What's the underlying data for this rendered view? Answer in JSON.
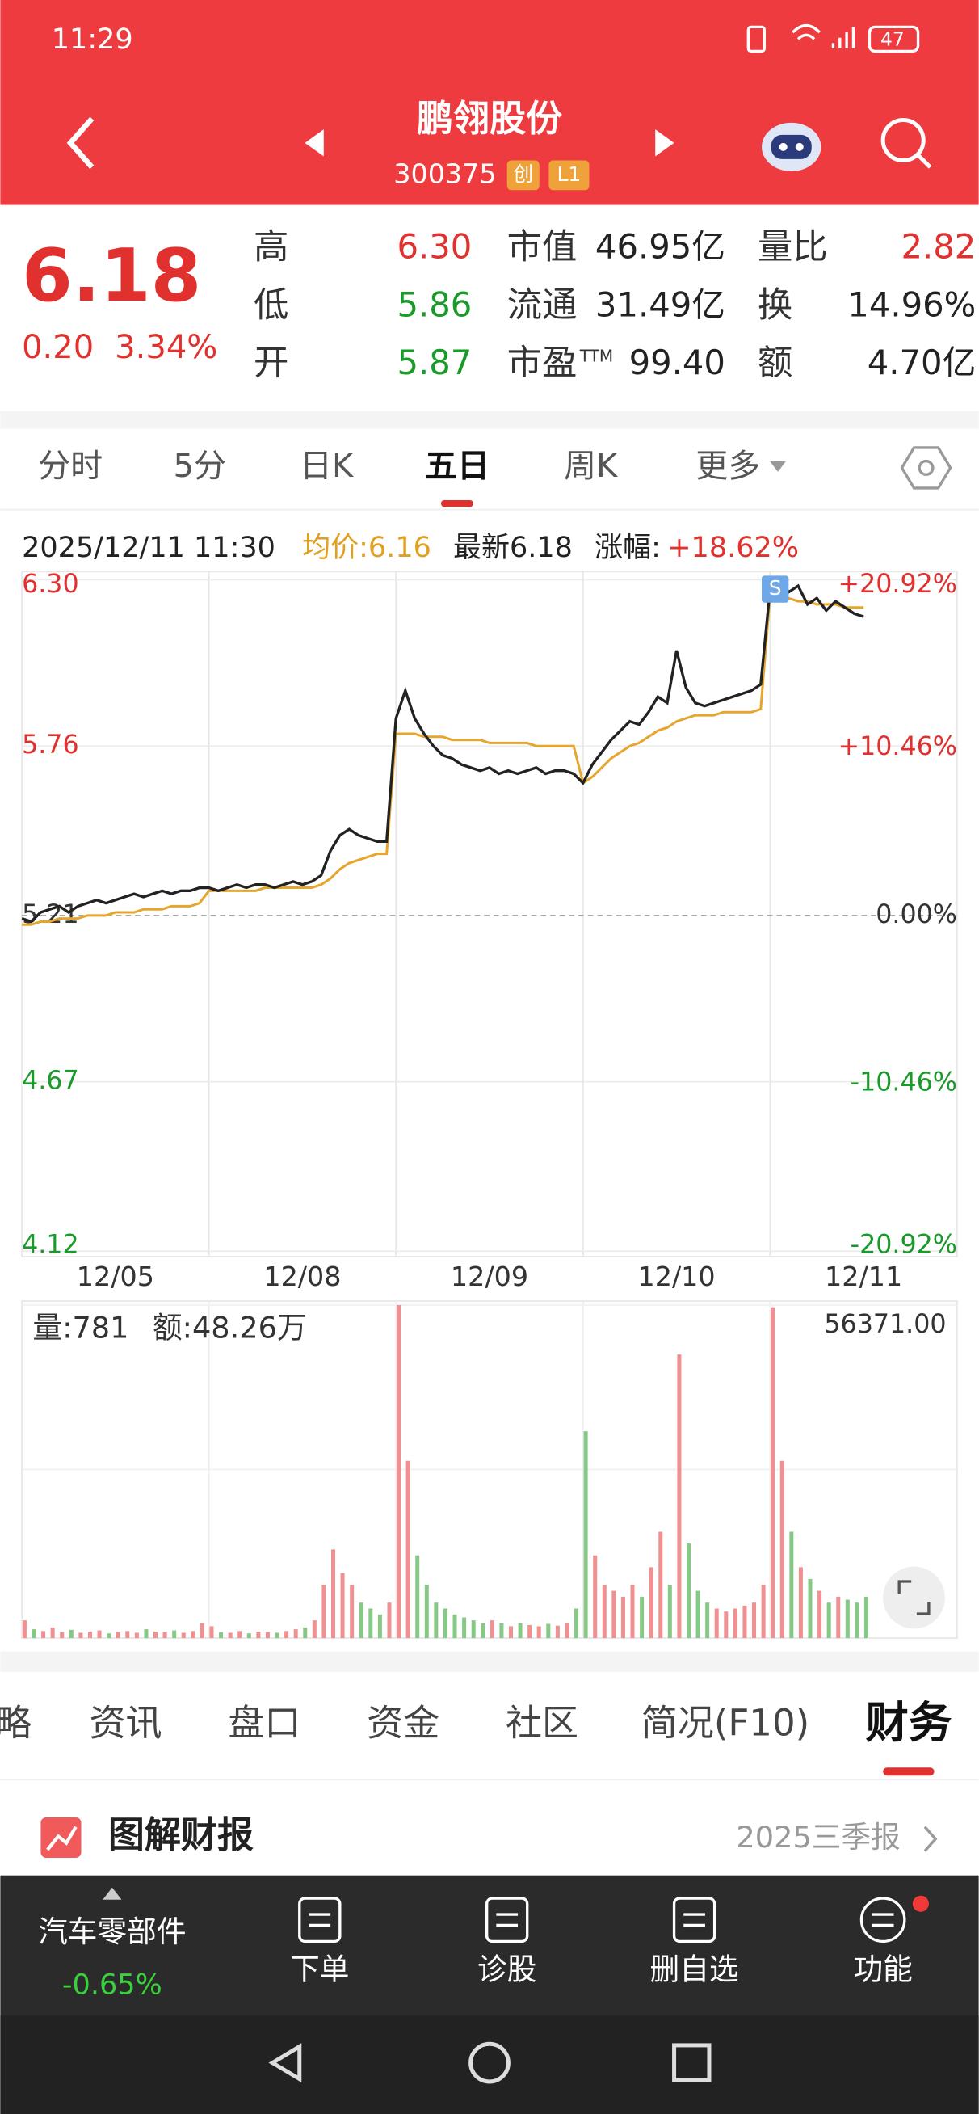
{
  "status_bar": {
    "time": "11:29",
    "battery": "47"
  },
  "header": {
    "title": "鹏翎股份",
    "code": "300375",
    "tags": [
      "创",
      "L1"
    ]
  },
  "quote": {
    "price": "6.18",
    "change": "0.20",
    "change_pct": "3.34%",
    "stats": [
      {
        "label": "高",
        "value": "6.30"
      },
      {
        "label": "低",
        "value": "5.86"
      },
      {
        "label": "开",
        "value": "5.87"
      },
      {
        "label": "市值",
        "value": "46.95亿"
      },
      {
        "label": "流通",
        "value": "31.49亿"
      },
      {
        "label": "市盈",
        "sup": "TTM",
        "value": "99.40"
      },
      {
        "label": "量比",
        "value": "2.82"
      },
      {
        "label": "换",
        "value": "14.96%"
      },
      {
        "label": "额",
        "value": "4.70亿"
      }
    ]
  },
  "period_tabs": [
    "分时",
    "5分",
    "日K",
    "五日",
    "周K",
    "更多"
  ],
  "chart_info": {
    "datetime": "2025/12/11 11:30",
    "avg": "均价:6.16",
    "latest": "最新6.18",
    "change_label": "涨幅:",
    "change_value": "+18.62%"
  },
  "volume_info": {
    "volume": "量:781",
    "amount": "额:48.26万"
  },
  "chart_data": [
    {
      "type": "line",
      "annotation": "S",
      "x": [
        0,
        0.05,
        0.1,
        0.15,
        0.2,
        0.25,
        0.3,
        0.35,
        0.4,
        0.45,
        0.5,
        0.55,
        0.6,
        0.65,
        0.7,
        0.75,
        0.8,
        0.85,
        0.9,
        0.95,
        1,
        1.05,
        1.1,
        1.15,
        1.2,
        1.25,
        1.3,
        1.35,
        1.4,
        1.45,
        1.5,
        1.55,
        1.6,
        1.65,
        1.7,
        1.75,
        1.8,
        1.85,
        1.9,
        1.95,
        2,
        2.05,
        2.1,
        2.15,
        2.2,
        2.25,
        2.3,
        2.35,
        2.4,
        2.45,
        2.5,
        2.55,
        2.6,
        2.65,
        2.7,
        2.75,
        2.8,
        2.85,
        2.9,
        2.95,
        3,
        3.05,
        3.1,
        3.15,
        3.2,
        3.25,
        3.3,
        3.35,
        3.4,
        3.45,
        3.5,
        3.55,
        3.6,
        3.65,
        3.7,
        3.75,
        3.8,
        3.85,
        3.9,
        3.95,
        4,
        4.05,
        4.1,
        4.15,
        4.2,
        4.25,
        4.3,
        4.35,
        4.4,
        4.45,
        4.5
      ],
      "xlim": [
        0,
        5
      ],
      "xticks": [
        {
          "value": 0.5,
          "label": "12/05"
        },
        {
          "value": 1.5,
          "label": "12/08"
        },
        {
          "value": 2.5,
          "label": "12/09"
        },
        {
          "value": 3.5,
          "label": "12/10"
        },
        {
          "value": 4.5,
          "label": "12/11"
        }
      ],
      "ylim": [
        4.12,
        6.3
      ],
      "yticks": [
        4.12,
        4.67,
        5.21,
        5.76,
        {
          "value": 6.3,
          "label": "6.30"
        }
      ],
      "y2lim": [
        -20.92,
        20.92
      ],
      "y2ticks": [
        {
          "value": -20.92,
          "label": "-20.92%"
        },
        {
          "value": -10.46,
          "label": "-10.46%"
        },
        {
          "value": 0,
          "label": "0.00%"
        },
        {
          "value": 10.46,
          "label": "+10.46%"
        },
        {
          "value": 20.92,
          "label": "+20.92%"
        }
      ],
      "grid": true,
      "series": [
        {
          "color": "#222222",
          "values": [
            5.2,
            5.19,
            5.22,
            5.23,
            5.24,
            5.22,
            5.24,
            5.25,
            5.26,
            5.25,
            5.26,
            5.27,
            5.28,
            5.27,
            5.28,
            5.29,
            5.28,
            5.29,
            5.29,
            5.3,
            5.3,
            5.29,
            5.3,
            5.31,
            5.3,
            5.31,
            5.31,
            5.3,
            5.31,
            5.32,
            5.31,
            5.32,
            5.34,
            5.42,
            5.47,
            5.49,
            5.47,
            5.46,
            5.45,
            5.45,
            5.85,
            5.94,
            5.85,
            5.8,
            5.76,
            5.73,
            5.72,
            5.7,
            5.69,
            5.68,
            5.69,
            5.67,
            5.68,
            5.67,
            5.68,
            5.69,
            5.67,
            5.68,
            5.68,
            5.67,
            5.64,
            5.7,
            5.74,
            5.78,
            5.81,
            5.84,
            5.83,
            5.87,
            5.92,
            5.9,
            6.07,
            5.95,
            5.9,
            5.89,
            5.9,
            5.91,
            5.92,
            5.93,
            5.94,
            5.96,
            6.27,
            6.3,
            6.26,
            6.28,
            6.22,
            6.24,
            6.2,
            6.23,
            6.21,
            6.19,
            6.18
          ]
        },
        {
          "color": "#e6a52c",
          "values": [
            5.18,
            5.18,
            5.19,
            5.19,
            5.2,
            5.2,
            5.2,
            5.21,
            5.21,
            5.21,
            5.22,
            5.22,
            5.22,
            5.23,
            5.23,
            5.23,
            5.24,
            5.24,
            5.24,
            5.25,
            5.29,
            5.29,
            5.29,
            5.29,
            5.29,
            5.29,
            5.3,
            5.3,
            5.3,
            5.3,
            5.3,
            5.3,
            5.31,
            5.33,
            5.36,
            5.38,
            5.39,
            5.4,
            5.41,
            5.41,
            5.8,
            5.8,
            5.8,
            5.79,
            5.79,
            5.79,
            5.78,
            5.78,
            5.78,
            5.78,
            5.77,
            5.77,
            5.77,
            5.77,
            5.77,
            5.76,
            5.76,
            5.76,
            5.76,
            5.76,
            5.64,
            5.66,
            5.69,
            5.72,
            5.74,
            5.76,
            5.77,
            5.79,
            5.81,
            5.82,
            5.84,
            5.85,
            5.86,
            5.86,
            5.86,
            5.87,
            5.87,
            5.87,
            5.87,
            5.88,
            6.25,
            6.24,
            6.24,
            6.23,
            6.23,
            6.22,
            6.22,
            6.22,
            6.21,
            6.21,
            6.21
          ]
        }
      ]
    },
    {
      "type": "bar",
      "up_color": "#f09090",
      "down_color": "#86c986",
      "x": [
        0,
        0.05,
        0.1,
        0.15,
        0.2,
        0.25,
        0.3,
        0.35,
        0.4,
        0.45,
        0.5,
        0.55,
        0.6,
        0.65,
        0.7,
        0.75,
        0.8,
        0.85,
        0.9,
        0.95,
        1,
        1.05,
        1.1,
        1.15,
        1.2,
        1.25,
        1.3,
        1.35,
        1.4,
        1.45,
        1.5,
        1.55,
        1.6,
        1.65,
        1.7,
        1.75,
        1.8,
        1.85,
        1.9,
        1.95,
        2,
        2.05,
        2.1,
        2.15,
        2.2,
        2.25,
        2.3,
        2.35,
        2.4,
        2.45,
        2.5,
        2.55,
        2.6,
        2.65,
        2.7,
        2.75,
        2.8,
        2.85,
        2.9,
        2.95,
        3,
        3.05,
        3.1,
        3.15,
        3.2,
        3.25,
        3.3,
        3.35,
        3.4,
        3.45,
        3.5,
        3.55,
        3.6,
        3.65,
        3.7,
        3.75,
        3.8,
        3.85,
        3.9,
        3.95,
        4,
        4.05,
        4.1,
        4.15,
        4.2,
        4.25,
        4.3,
        4.35,
        4.4,
        4.45,
        4.5
      ],
      "xlim": [
        0,
        5
      ],
      "ylim": [
        0,
        56371
      ],
      "yticks": [
        {
          "value": 56371,
          "label": "56371.00"
        }
      ],
      "values": [
        3000,
        1500,
        1200,
        1800,
        1000,
        1400,
        900,
        1100,
        1300,
        800,
        1000,
        1200,
        900,
        1500,
        1100,
        1000,
        1300,
        900,
        1200,
        2500,
        2000,
        1000,
        900,
        1200,
        800,
        1100,
        1000,
        900,
        1200,
        1500,
        1800,
        3000,
        9000,
        15000,
        11000,
        9000,
        6000,
        5000,
        4000,
        6000,
        56371,
        30000,
        14000,
        9000,
        6000,
        5000,
        4000,
        3500,
        3000,
        2500,
        3000,
        2500,
        2000,
        2500,
        2200,
        2000,
        2400,
        2100,
        2600,
        5000,
        35000,
        14000,
        9000,
        8000,
        7000,
        9000,
        7000,
        12000,
        18000,
        9000,
        48000,
        16000,
        8000,
        6000,
        5000,
        4500,
        5000,
        5500,
        6000,
        9000,
        56000,
        30000,
        18000,
        12000,
        10000,
        8000,
        6000,
        7000,
        6500,
        6000,
        7000
      ]
    }
  ],
  "section_tabs": [
    "略",
    "资讯",
    "盘口",
    "资金",
    "社区",
    "简况(F10)",
    "财务"
  ],
  "section": {
    "title": "图解财报",
    "report": "2025三季报"
  },
  "bottom_nav": {
    "sector": "汽车零部件",
    "sector_change": "-0.65%",
    "items": [
      "下单",
      "诊股",
      "删自选",
      "功能"
    ]
  }
}
